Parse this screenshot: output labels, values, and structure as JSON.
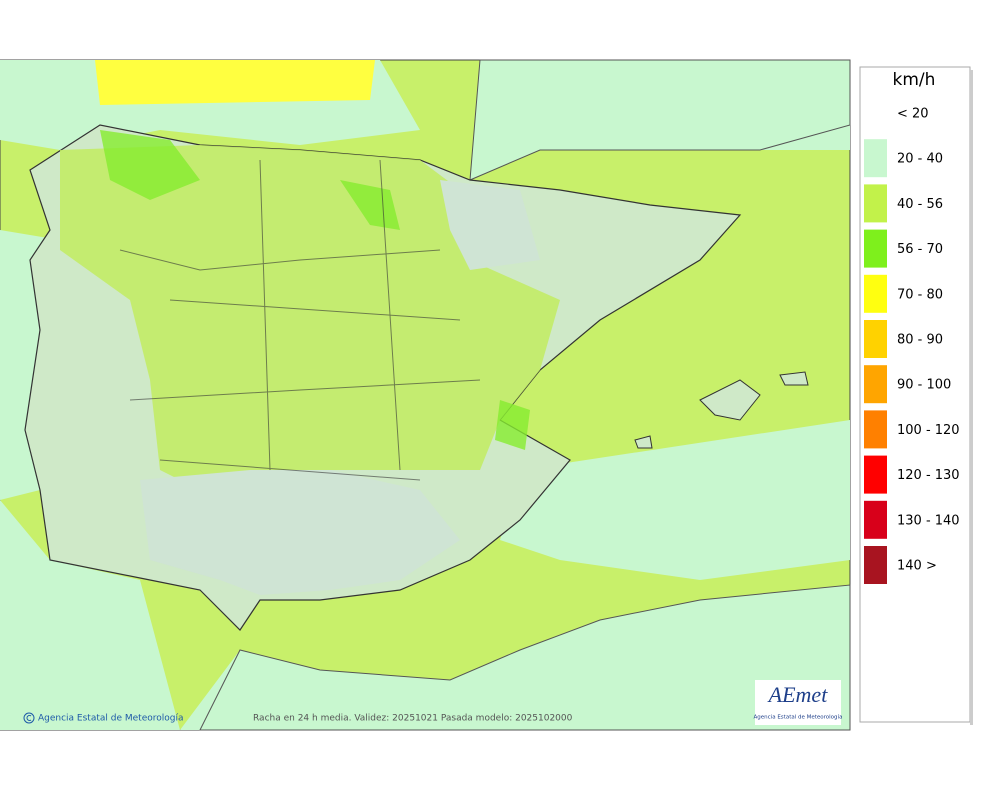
{
  "legend": {
    "unit": "km/h",
    "entries": [
      {
        "label": "< 20",
        "color": "#ffffff"
      },
      {
        "label": "20 - 40",
        "color": "#c8f7cf"
      },
      {
        "label": "40 - 56",
        "color": "#c2f24a"
      },
      {
        "label": "56 - 70",
        "color": "#7ef01c"
      },
      {
        "label": "70 - 80",
        "color": "#ffff10"
      },
      {
        "label": "80 - 90",
        "color": "#ffd200"
      },
      {
        "label": "90 - 100",
        "color": "#ffa500"
      },
      {
        "label": "100 - 120",
        "color": "#ff8000"
      },
      {
        "label": "120 - 130",
        "color": "#ff0000"
      },
      {
        "label": "130 - 140",
        "color": "#d8001a"
      },
      {
        "label": "140 >",
        "color": "#a81420"
      }
    ]
  },
  "footer": {
    "credit": "Agencia Estatal de Meteorología",
    "caption": "Racha en 24 h media. Validez: 20251021 Pasada modelo: 2025102000"
  },
  "logo": {
    "name": "AEmet",
    "subtitle": "Agencia Estatal de Meteorología"
  }
}
